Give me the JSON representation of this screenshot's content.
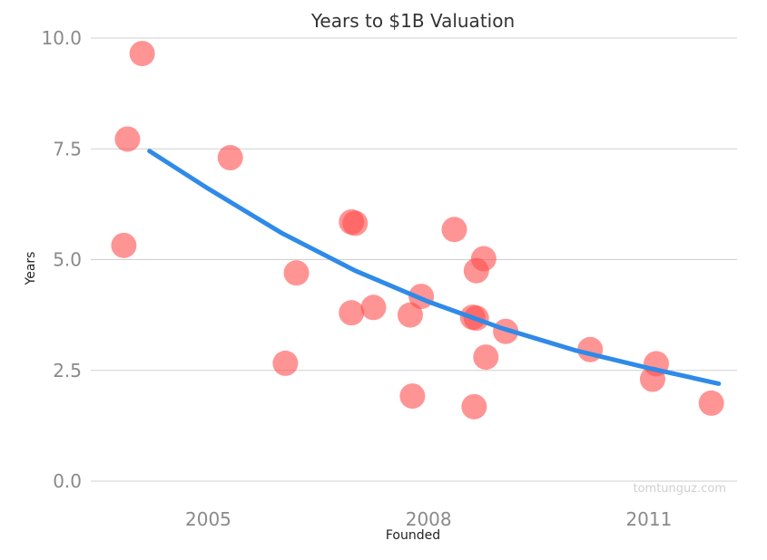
{
  "chart_data": {
    "type": "scatter",
    "title": "Years to $1B Valuation",
    "xlabel": "Founded",
    "ylabel": "Years",
    "xlim": [
      2003.4,
      2012.2
    ],
    "ylim": [
      0,
      10
    ],
    "x_ticks": [
      {
        "value": 2005,
        "label": "2005"
      },
      {
        "value": 2008,
        "label": "2008"
      },
      {
        "value": 2011,
        "label": "2011"
      }
    ],
    "y_ticks": [
      {
        "value": 0,
        "label": "0.0"
      },
      {
        "value": 2.5,
        "label": "2.5"
      },
      {
        "value": 5,
        "label": "5.0"
      },
      {
        "value": 7.5,
        "label": "7.5"
      },
      {
        "value": 10,
        "label": "10.0"
      }
    ],
    "grid": "horizontal",
    "points": [
      {
        "x": 2004.1,
        "y": 9.65
      },
      {
        "x": 2003.9,
        "y": 7.72
      },
      {
        "x": 2003.85,
        "y": 5.32
      },
      {
        "x": 2005.3,
        "y": 7.3
      },
      {
        "x": 2006.2,
        "y": 4.7
      },
      {
        "x": 2006.05,
        "y": 2.66
      },
      {
        "x": 2006.95,
        "y": 5.85
      },
      {
        "x": 2007.0,
        "y": 5.82
      },
      {
        "x": 2006.95,
        "y": 3.8
      },
      {
        "x": 2007.25,
        "y": 3.92
      },
      {
        "x": 2007.75,
        "y": 3.75
      },
      {
        "x": 2007.9,
        "y": 4.17
      },
      {
        "x": 2007.78,
        "y": 1.92
      },
      {
        "x": 2008.35,
        "y": 5.68
      },
      {
        "x": 2008.6,
        "y": 3.7
      },
      {
        "x": 2008.65,
        "y": 3.68
      },
      {
        "x": 2008.65,
        "y": 4.75
      },
      {
        "x": 2008.75,
        "y": 5.02
      },
      {
        "x": 2008.78,
        "y": 2.8
      },
      {
        "x": 2008.62,
        "y": 1.68
      },
      {
        "x": 2009.05,
        "y": 3.38
      },
      {
        "x": 2010.2,
        "y": 2.97
      },
      {
        "x": 2011.1,
        "y": 2.65
      },
      {
        "x": 2011.05,
        "y": 2.3
      },
      {
        "x": 2011.85,
        "y": 1.76
      }
    ],
    "trend_line": {
      "color": "#2f8ae8",
      "x": [
        2004.2,
        2005.0,
        2006.0,
        2007.0,
        2008.0,
        2009.0,
        2010.0,
        2011.0,
        2011.95
      ],
      "y": [
        7.45,
        6.6,
        5.6,
        4.75,
        4.05,
        3.45,
        2.95,
        2.55,
        2.2
      ]
    },
    "point_color": "#ff4c4c"
  },
  "credit": "tomtunguz.com"
}
